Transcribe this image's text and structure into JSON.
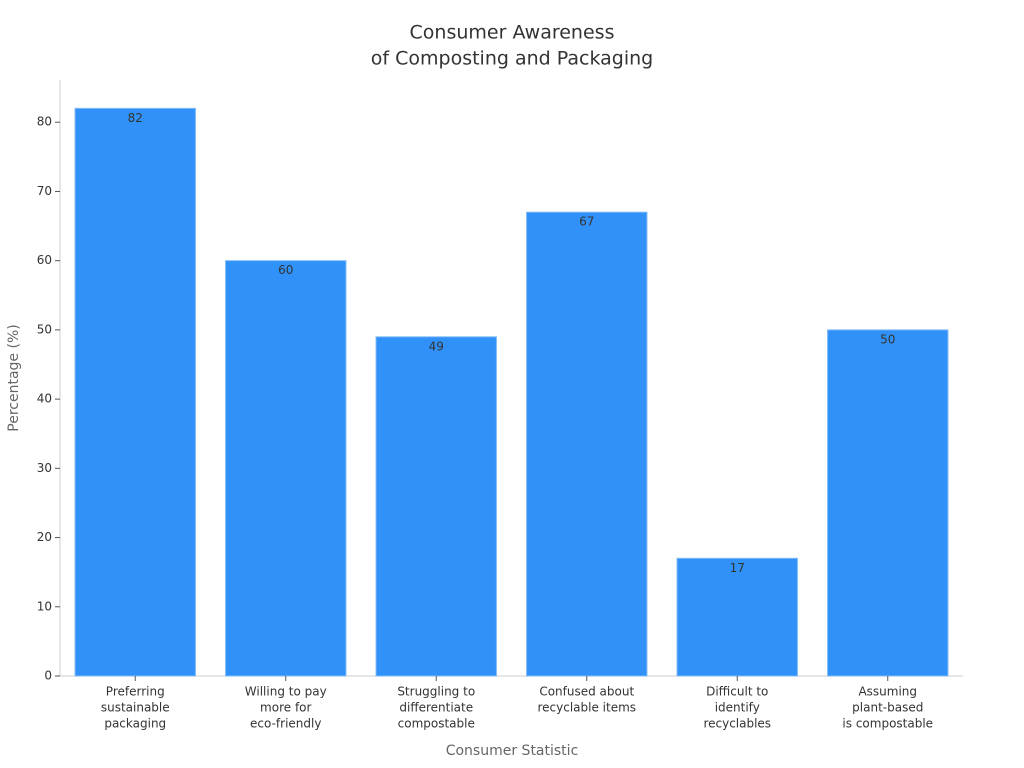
{
  "chart_data": {
    "type": "bar",
    "title": [
      "Consumer Awareness",
      "of Composting and Packaging"
    ],
    "x_label": "Consumer Statistic",
    "y_label": "Percentage (%)",
    "categories": [
      [
        "Preferring",
        "sustainable",
        "packaging"
      ],
      [
        "Willing to pay",
        "more for",
        "eco-friendly"
      ],
      [
        "Struggling to",
        "differentiate",
        "compostable"
      ],
      [
        "Confused about",
        "recyclable items"
      ],
      [
        "Difficult to",
        "identify",
        "recyclables"
      ],
      [
        "Assuming",
        "plant-based",
        "is compostable"
      ]
    ],
    "values": [
      82,
      60,
      49,
      67,
      17,
      50
    ],
    "color": "#3092f8",
    "ylim": [
      0,
      86.1
    ],
    "yticks": [
      0,
      10,
      20,
      30,
      40,
      50,
      60,
      70,
      80
    ],
    "grid": false
  }
}
